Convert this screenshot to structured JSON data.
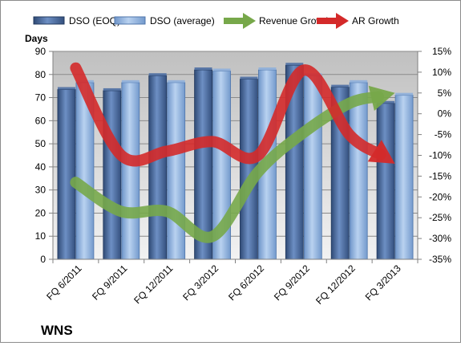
{
  "chart_data": {
    "type": "bar",
    "footer_label": "WNS",
    "y_axis_title": "Days",
    "categories": [
      "FQ 6/2011",
      "FQ 9/2011",
      "FQ 12/2011",
      "FQ 3/2012",
      "FQ 6/2012",
      "FQ 9/2012",
      "FQ 12/2012",
      "FQ 3/2013"
    ],
    "ylim": [
      0,
      90
    ],
    "y_ticks": [
      0,
      10,
      20,
      30,
      40,
      50,
      60,
      70,
      80,
      90
    ],
    "y2lim": [
      -0.35,
      0.15
    ],
    "y2_ticks": [
      "-35%",
      "-30%",
      "-25%",
      "-20%",
      "-15%",
      "-10%",
      "-5%",
      "0%",
      "5%",
      "10%",
      "15%"
    ],
    "grid": true,
    "legend_position": "top",
    "series": [
      {
        "name": "DSO (EOQ)",
        "kind": "bar",
        "axis": "left",
        "color": "#4e6fa3",
        "values": [
          73.5,
          73,
          79.5,
          82,
          78,
          84,
          74.5,
          67.5
        ]
      },
      {
        "name": "DSO (average)",
        "kind": "bar",
        "axis": "left",
        "color": "#8fb0dc",
        "values": [
          76.5,
          76.5,
          76.5,
          81.5,
          82,
          79.5,
          76.5,
          71
        ]
      },
      {
        "name": "Revenue Growth",
        "kind": "arrow-line",
        "axis": "right",
        "color": "#77a84a",
        "values": [
          -0.165,
          -0.235,
          -0.235,
          -0.295,
          -0.14,
          -0.045,
          0.025,
          0.05
        ]
      },
      {
        "name": "AR Growth",
        "kind": "arrow-line",
        "axis": "right",
        "color": "#d42a2a",
        "values": [
          0.11,
          -0.1,
          -0.09,
          -0.067,
          -0.1,
          0.105,
          -0.05,
          -0.12
        ]
      }
    ]
  }
}
